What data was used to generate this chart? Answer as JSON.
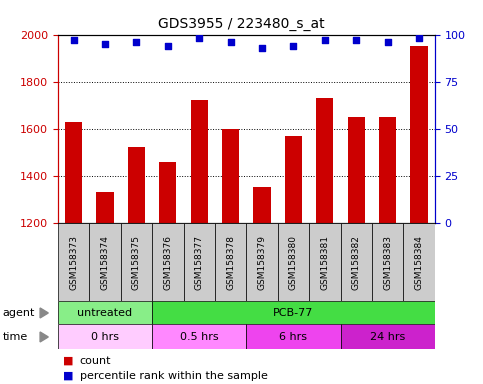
{
  "title": "GDS3955 / 223480_s_at",
  "samples": [
    "GSM158373",
    "GSM158374",
    "GSM158375",
    "GSM158376",
    "GSM158377",
    "GSM158378",
    "GSM158379",
    "GSM158380",
    "GSM158381",
    "GSM158382",
    "GSM158383",
    "GSM158384"
  ],
  "counts": [
    1630,
    1330,
    1520,
    1460,
    1720,
    1600,
    1350,
    1570,
    1730,
    1650,
    1650,
    1950
  ],
  "percentiles": [
    97,
    95,
    96,
    94,
    98,
    96,
    93,
    94,
    97,
    97,
    96,
    98
  ],
  "bar_color": "#cc0000",
  "dot_color": "#0000cc",
  "ylim_left": [
    1200,
    2000
  ],
  "ylim_right": [
    0,
    100
  ],
  "yticks_left": [
    1200,
    1400,
    1600,
    1800,
    2000
  ],
  "yticks_right": [
    0,
    25,
    50,
    75,
    100
  ],
  "chart_bg": "#ffffff",
  "xticklabel_bg": "#cccccc",
  "agent_segments": [
    {
      "label": "untreated",
      "start": 0,
      "end": 3,
      "color": "#88ee88"
    },
    {
      "label": "PCB-77",
      "start": 3,
      "end": 12,
      "color": "#44dd44"
    }
  ],
  "time_segments": [
    {
      "label": "0 hrs",
      "start": 0,
      "end": 3,
      "color": "#ffccff"
    },
    {
      "label": "0.5 hrs",
      "start": 3,
      "end": 6,
      "color": "#ff88ff"
    },
    {
      "label": "6 hrs",
      "start": 6,
      "end": 9,
      "color": "#ee44ee"
    },
    {
      "label": "24 hrs",
      "start": 9,
      "end": 12,
      "color": "#cc22cc"
    }
  ],
  "axis_color_left": "#cc0000",
  "axis_color_right": "#0000cc",
  "title_fontsize": 10,
  "tick_fontsize": 8,
  "xlabel_fontsize": 6.5,
  "segment_fontsize": 8,
  "legend_fontsize": 8
}
